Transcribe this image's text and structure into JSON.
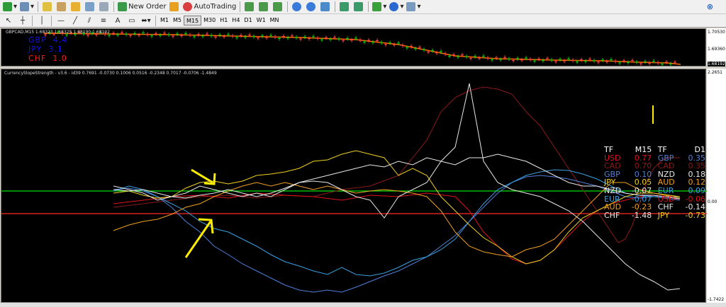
{
  "toolbar": {
    "new_order_label": "New Order",
    "auto_trading_label": "AutoTrading",
    "timeframes": [
      "M1",
      "M5",
      "M15",
      "M30",
      "H1",
      "H4",
      "D1",
      "W1",
      "MN"
    ],
    "active_timeframe": "M15",
    "close_label": "⊗"
  },
  "price_chart": {
    "header": "GBPCAD,M15  1.68323 1.68325 1.68190 1.68192",
    "labels": [
      {
        "text": "GBP",
        "value": "4.4",
        "color": "#1010ff"
      },
      {
        "text": "JPY",
        "value": "3.1",
        "color": "#1010ff"
      },
      {
        "text": "CHF",
        "value": "1.0",
        "color": "#ff1a1a"
      }
    ],
    "price_scale": [
      "1.70530",
      "1.69360",
      "1.68192"
    ]
  },
  "indicator": {
    "header": "CurrencySlopeStrength - v3.6 - id39 0.7691 -0.0730 0.1006 0.0516 -0.2348 0.7017 -0.0706 -1.4849",
    "scale": [
      "2.2651",
      "0.00",
      "-1.7422"
    ],
    "table_headers": [
      "TF",
      "M15",
      "TF",
      "D1"
    ],
    "m15": [
      {
        "cur": "USD",
        "val": "0.77",
        "color": "#e0101a"
      },
      {
        "cur": "CAD",
        "val": "0.70",
        "color": "#8b1a1a"
      },
      {
        "cur": "GBP",
        "val": "0.10",
        "color": "#4f7fd9"
      },
      {
        "cur": "JPY",
        "val": "0.05",
        "color": "#f0d020"
      },
      {
        "cur": "NZD",
        "val": "-0.07",
        "color": "#e8e8e8"
      },
      {
        "cur": "EUR",
        "val": "-0.07",
        "color": "#3aa0e0"
      },
      {
        "cur": "AUD",
        "val": "-0.23",
        "color": "#f0a020"
      },
      {
        "cur": "CHF",
        "val": "-1.48",
        "color": "#e8e8e8"
      }
    ],
    "d1": [
      {
        "cur": "GBP",
        "val": "0.35",
        "color": "#4f7fd9"
      },
      {
        "cur": "CAD",
        "val": "0.35",
        "color": "#8b1a1a"
      },
      {
        "cur": "NZD",
        "val": "0.18",
        "color": "#e8e8e8"
      },
      {
        "cur": "AUD",
        "val": "0.12",
        "color": "#f0a020"
      },
      {
        "cur": "EUR",
        "val": "0.09",
        "color": "#3aa0e0"
      },
      {
        "cur": "USD",
        "val": "-0.06",
        "color": "#e0101a"
      },
      {
        "cur": "CHF",
        "val": "-0.14",
        "color": "#e8e8e8"
      },
      {
        "cur": "JPY",
        "val": "-0.73",
        "color": "#f0d020"
      }
    ]
  },
  "colors": {
    "upper_level": "#00e000",
    "lower_level": "#ff2a2a",
    "arrow": "#ffee00"
  }
}
